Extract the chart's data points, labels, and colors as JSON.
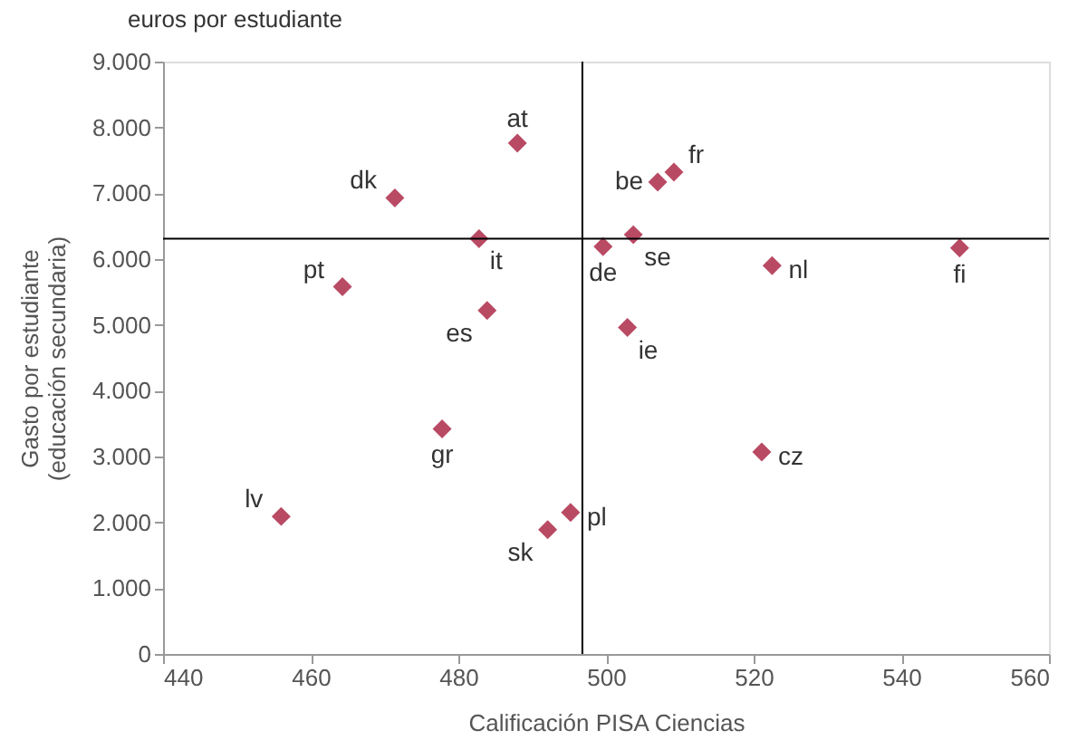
{
  "chart_data": {
    "type": "scatter",
    "title": "euros por estudiante",
    "xlabel": "Calificación PISA Ciencias",
    "ylabel": "Gasto por estudiante\n(educación secundaria)",
    "x": [
      488,
      471.4,
      509.2,
      507,
      482.8,
      499.6,
      503.7,
      547.9,
      522.5,
      464.3,
      483.9,
      502.9,
      477.8,
      521.1,
      456,
      495.2,
      492.1
    ],
    "values": [
      7760,
      6930,
      7320,
      7170,
      6310,
      6190,
      6370,
      6170,
      5900,
      5580,
      5220,
      4960,
      3420,
      3070,
      2090,
      2150,
      1890
    ],
    "value_labels": [
      "at",
      "dk",
      "fr",
      "be",
      "it",
      "de",
      "se",
      "fi",
      "nl",
      "pt",
      "es",
      "ie",
      "gr",
      "cz",
      "lv",
      "pl",
      "sk"
    ],
    "color": "#b94a64",
    "marker": "diamond",
    "xlim": [
      440,
      560
    ],
    "xticks": [
      440,
      460,
      480,
      500,
      520,
      540,
      560
    ],
    "ylim": [
      0,
      9000
    ],
    "yticks": [
      0,
      {
        "value": 1000,
        "label": "1.000"
      },
      {
        "value": 2000,
        "label": "2.000"
      },
      {
        "value": 3000,
        "label": "3.000"
      },
      {
        "value": 4000,
        "label": "4.000"
      },
      {
        "value": 5000,
        "label": "5.000"
      },
      {
        "value": 6000,
        "label": "6.000"
      },
      {
        "value": 7000,
        "label": "7.000"
      },
      {
        "value": 8000,
        "label": "8.000"
      },
      {
        "value": 9000,
        "label": "9.000"
      }
    ],
    "ref_lines": [
      {
        "axis": "x",
        "value": 496.8,
        "color": "#000000"
      },
      {
        "axis": "y",
        "value": 6310,
        "color": "#000000"
      }
    ],
    "grid": false
  }
}
